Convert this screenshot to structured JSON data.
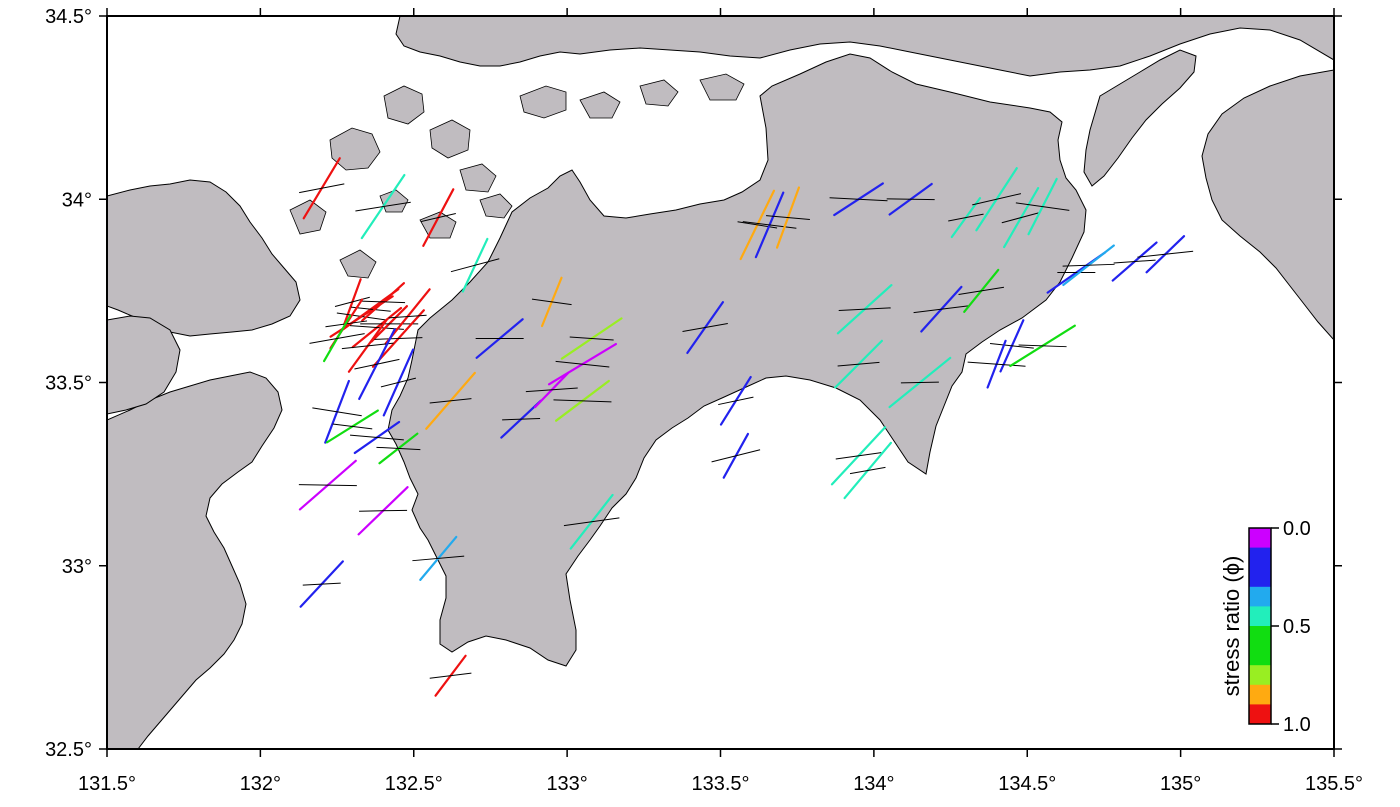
{
  "map": {
    "lon_ticks": [
      131.5,
      132,
      132.5,
      133,
      133.5,
      134,
      134.5,
      135,
      135.5
    ],
    "lat_ticks": [
      32.5,
      33,
      33.5,
      34,
      34.5
    ],
    "lon_tick_labels": [
      "131.5°",
      "132°",
      "132.5°",
      "133°",
      "133.5°",
      "134°",
      "134.5°",
      "135°",
      "135.5°"
    ],
    "lat_tick_labels": [
      "32.5°",
      "33°",
      "33.5°",
      "34°",
      "34.5°"
    ],
    "lon_range": [
      131.5,
      135.5
    ],
    "lat_range": [
      32.5,
      34.5
    ],
    "colors": {
      "land": "#c0bcc0",
      "sea": "#ffffff",
      "frame": "#000000",
      "coast": "#000000"
    }
  },
  "colorbar": {
    "title": "stress ratio (ϕ)",
    "tick_labels": [
      "0.0",
      "0.5",
      "1.0"
    ],
    "ticks": [
      0.0,
      0.5,
      1.0
    ],
    "bins": [
      {
        "from": 0.0,
        "to": 0.1,
        "color": "#cc00ff"
      },
      {
        "from": 0.1,
        "to": 0.3,
        "color": "#2222ee"
      },
      {
        "from": 0.3,
        "to": 0.4,
        "color": "#22aaee"
      },
      {
        "from": 0.4,
        "to": 0.5,
        "color": "#22eebb"
      },
      {
        "from": 0.5,
        "to": 0.7,
        "color": "#11dd11"
      },
      {
        "from": 0.7,
        "to": 0.8,
        "color": "#99ee22"
      },
      {
        "from": 0.8,
        "to": 0.9,
        "color": "#ffaa11"
      },
      {
        "from": 0.9,
        "to": 1.0,
        "color": "#ee1111"
      }
    ]
  },
  "stress_data": [
    {
      "lon": 132.3,
      "lat": 33.72,
      "phi": 0.95
    },
    {
      "lon": 132.33,
      "lat": 33.68,
      "phi": 0.95
    },
    {
      "lon": 132.36,
      "lat": 33.7,
      "phi": 0.95
    },
    {
      "lon": 132.38,
      "lat": 33.65,
      "phi": 0.95
    },
    {
      "lon": 132.4,
      "lat": 33.72,
      "phi": 0.95
    },
    {
      "lon": 132.42,
      "lat": 33.66,
      "phi": 0.95
    },
    {
      "lon": 132.45,
      "lat": 33.62,
      "phi": 0.95
    },
    {
      "lon": 132.48,
      "lat": 33.68,
      "phi": 0.95
    },
    {
      "lon": 132.35,
      "lat": 33.6,
      "phi": 0.95
    },
    {
      "lon": 132.28,
      "lat": 33.66,
      "phi": 0.95
    },
    {
      "lon": 132.25,
      "lat": 33.62,
      "phi": 0.55
    },
    {
      "lon": 132.38,
      "lat": 33.55,
      "phi": 0.2
    },
    {
      "lon": 132.45,
      "lat": 33.5,
      "phi": 0.2
    },
    {
      "lon": 132.25,
      "lat": 33.42,
      "phi": 0.2
    },
    {
      "lon": 132.3,
      "lat": 33.38,
      "phi": 0.55
    },
    {
      "lon": 132.38,
      "lat": 33.35,
      "phi": 0.2
    },
    {
      "lon": 132.45,
      "lat": 33.32,
      "phi": 0.55
    },
    {
      "lon": 132.22,
      "lat": 33.22,
      "phi": 0.05
    },
    {
      "lon": 132.4,
      "lat": 33.15,
      "phi": 0.05
    },
    {
      "lon": 132.2,
      "lat": 32.95,
      "phi": 0.2
    },
    {
      "lon": 132.58,
      "lat": 33.02,
      "phi": 0.35
    },
    {
      "lon": 132.62,
      "lat": 32.7,
      "phi": 0.95
    },
    {
      "lon": 132.4,
      "lat": 33.98,
      "phi": 0.45
    },
    {
      "lon": 132.2,
      "lat": 34.03,
      "phi": 0.95
    },
    {
      "lon": 132.58,
      "lat": 33.95,
      "phi": 0.95
    },
    {
      "lon": 132.7,
      "lat": 33.82,
      "phi": 0.45
    },
    {
      "lon": 132.95,
      "lat": 33.72,
      "phi": 0.85
    },
    {
      "lon": 133.05,
      "lat": 33.55,
      "phi": 0.05
    },
    {
      "lon": 133.08,
      "lat": 33.62,
      "phi": 0.75
    },
    {
      "lon": 133.05,
      "lat": 33.45,
      "phi": 0.75
    },
    {
      "lon": 132.78,
      "lat": 33.62,
      "phi": 0.2
    },
    {
      "lon": 132.85,
      "lat": 33.4,
      "phi": 0.2
    },
    {
      "lon": 132.95,
      "lat": 33.48,
      "phi": 0.05
    },
    {
      "lon": 132.62,
      "lat": 33.45,
      "phi": 0.85
    },
    {
      "lon": 133.08,
      "lat": 33.12,
      "phi": 0.45
    },
    {
      "lon": 133.45,
      "lat": 33.65,
      "phi": 0.2
    },
    {
      "lon": 133.55,
      "lat": 33.45,
      "phi": 0.2
    },
    {
      "lon": 133.55,
      "lat": 33.3,
      "phi": 0.2
    },
    {
      "lon": 133.62,
      "lat": 33.93,
      "phi": 0.85
    },
    {
      "lon": 133.66,
      "lat": 33.93,
      "phi": 0.2
    },
    {
      "lon": 133.72,
      "lat": 33.95,
      "phi": 0.85
    },
    {
      "lon": 133.95,
      "lat": 34.0,
      "phi": 0.2
    },
    {
      "lon": 134.12,
      "lat": 34.0,
      "phi": 0.2
    },
    {
      "lon": 134.15,
      "lat": 33.5,
      "phi": 0.45
    },
    {
      "lon": 133.97,
      "lat": 33.7,
      "phi": 0.45
    },
    {
      "lon": 133.95,
      "lat": 33.55,
      "phi": 0.45
    },
    {
      "lon": 134.22,
      "lat": 33.7,
      "phi": 0.2
    },
    {
      "lon": 134.35,
      "lat": 33.75,
      "phi": 0.55
    },
    {
      "lon": 134.3,
      "lat": 33.95,
      "phi": 0.45
    },
    {
      "lon": 134.4,
      "lat": 34.0,
      "phi": 0.45
    },
    {
      "lon": 134.48,
      "lat": 33.95,
      "phi": 0.45
    },
    {
      "lon": 134.55,
      "lat": 33.98,
      "phi": 0.45
    },
    {
      "lon": 134.45,
      "lat": 33.6,
      "phi": 0.2
    },
    {
      "lon": 134.4,
      "lat": 33.55,
      "phi": 0.2
    },
    {
      "lon": 134.55,
      "lat": 33.6,
      "phi": 0.55
    },
    {
      "lon": 134.66,
      "lat": 33.8,
      "phi": 0.2
    },
    {
      "lon": 134.7,
      "lat": 33.82,
      "phi": 0.35
    },
    {
      "lon": 134.85,
      "lat": 33.83,
      "phi": 0.2
    },
    {
      "lon": 134.95,
      "lat": 33.85,
      "phi": 0.2
    },
    {
      "lon": 133.95,
      "lat": 33.3,
      "phi": 0.45
    },
    {
      "lon": 133.98,
      "lat": 33.26,
      "phi": 0.45
    }
  ]
}
